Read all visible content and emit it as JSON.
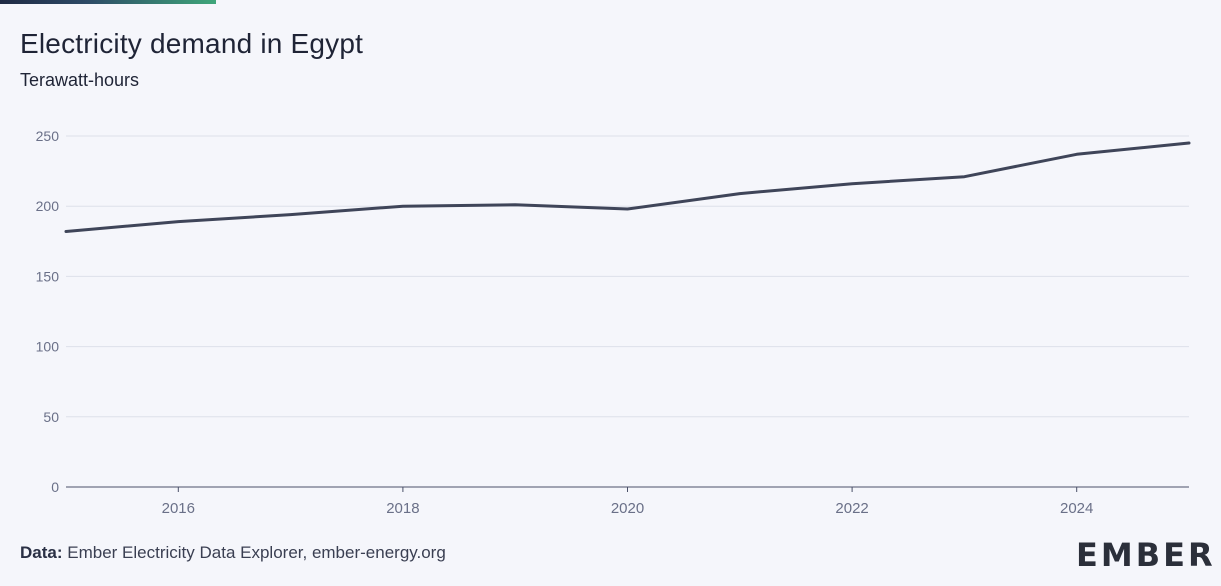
{
  "title": "Electricity demand in Egypt",
  "subtitle": "Terawatt-hours",
  "footer": {
    "label": "Data:",
    "source": "Ember Electricity Data Explorer, ember-energy.org"
  },
  "logo": {
    "text": "EMBER"
  },
  "colors": {
    "line": "#3f4559",
    "grid": "#dde0ea",
    "axis": "#6a7088",
    "accent": "#3fd07a"
  },
  "chart_data": {
    "type": "line",
    "title": "Electricity demand in Egypt",
    "ylabel": "Terawatt-hours",
    "xlabel": "",
    "x": [
      2015,
      2016,
      2017,
      2018,
      2019,
      2020,
      2021,
      2022,
      2023,
      2024,
      2025
    ],
    "series": [
      {
        "values": [
          182,
          189,
          194,
          200,
          201,
          198,
          209,
          216,
          221,
          237,
          245
        ]
      }
    ],
    "xlim": [
      2015,
      2025
    ],
    "ylim": [
      0,
      250
    ],
    "xticks": [
      2016,
      2018,
      2020,
      2022,
      2024
    ],
    "yticks": [
      0,
      50,
      100,
      150,
      200,
      250
    ],
    "grid": true,
    "legend": "none"
  }
}
